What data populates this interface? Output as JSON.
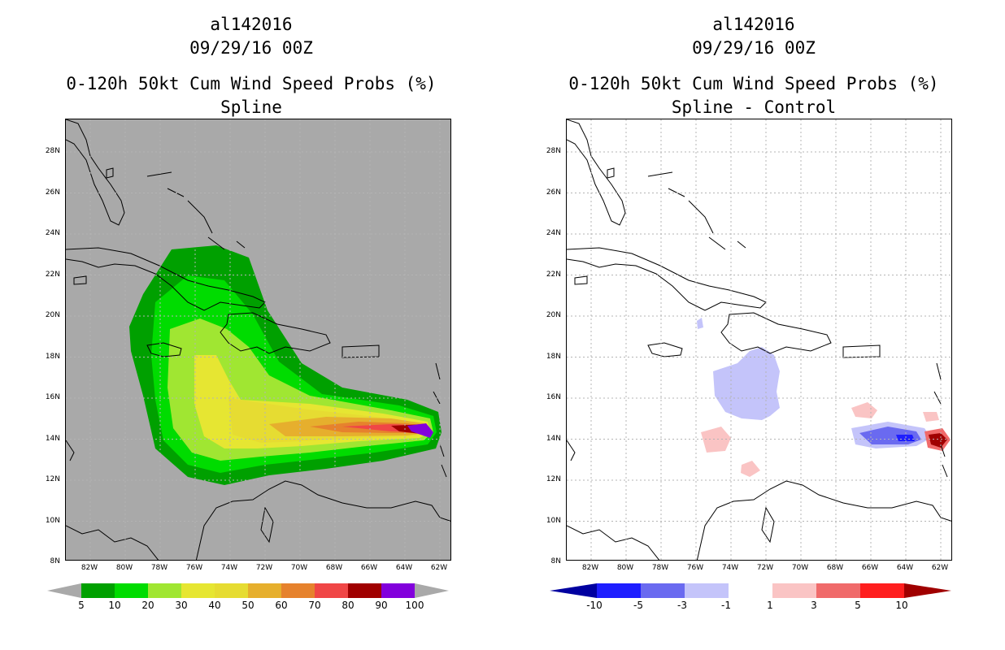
{
  "panels": {
    "left": {
      "storm_id": "al142016",
      "datetime": "09/29/16 00Z",
      "product": "0-120h 50kt Cum Wind Speed Probs (%)",
      "subtitle": "Spline",
      "colorbar": {
        "colors": [
          "#a9a9a9",
          "#00a000",
          "#00dc00",
          "#a0e632",
          "#e6e632",
          "#e6dc32",
          "#e6af2d",
          "#e6822d",
          "#f04646",
          "#a00000",
          "#8200dc",
          "#a9a9a9"
        ],
        "labels": [
          "5",
          "10",
          "20",
          "30",
          "40",
          "50",
          "60",
          "70",
          "80",
          "90",
          "100"
        ]
      }
    },
    "right": {
      "storm_id": "al142016",
      "datetime": "09/29/16 00Z",
      "product": "0-120h 50kt Cum Wind Speed Probs (%)",
      "subtitle": "Spline - Control",
      "colorbar": {
        "colors": [
          "#0000a0",
          "#1e1eff",
          "#6a6af0",
          "#c4c4fa",
          "#ffffff",
          "#fac4c4",
          "#f06a6a",
          "#ff1e1e",
          "#a00000"
        ],
        "labels": [
          "-10",
          "-5",
          "-3",
          "-1",
          "1",
          "3",
          "5",
          "10"
        ]
      }
    }
  },
  "axes": {
    "lat_labels": [
      "28N",
      "26N",
      "24N",
      "22N",
      "20N",
      "18N",
      "16N",
      "14N",
      "12N",
      "10N",
      "8N"
    ],
    "lon_labels": [
      "82W",
      "80W",
      "78W",
      "76W",
      "74W",
      "72W",
      "70W",
      "68W",
      "66W",
      "64W",
      "62W"
    ]
  },
  "colors": {
    "land_outline": "#000000",
    "grid": "#b4b4b4",
    "missing": "#a9a9a9"
  }
}
